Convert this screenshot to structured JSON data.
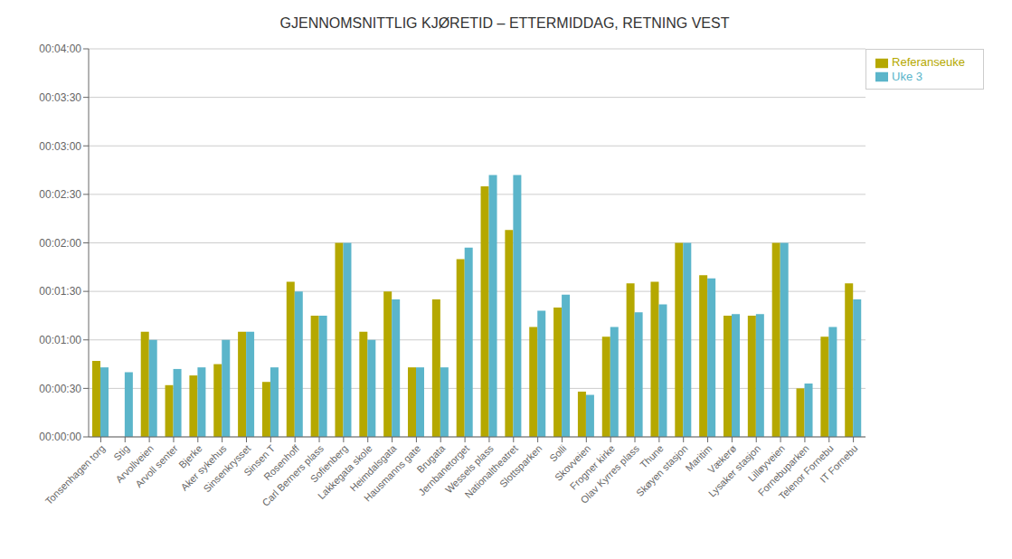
{
  "chart_data": {
    "type": "bar",
    "title": "GJENNOMSNITTLIG KJØRETID – ETTERMIDDAG, RETNING VEST",
    "categories": [
      "Tonsenhagen torg",
      "Stig",
      "Arvollveien",
      "Arvoll senter",
      "Bjerke",
      "Aker sykehus",
      "Sinsenkrysset",
      "Sinsen T",
      "Rosenhoff",
      "Carl Berners plass",
      "Sofienberg",
      "Lakkegata skole",
      "Heimdalsgata",
      "Hausmanns gate",
      "Brugata",
      "Jernbanetorget",
      "Wessels plass",
      "Nationaltheatret",
      "Slottsparken",
      "Solli",
      "Skovveien",
      "Frogner kirke",
      "Olav Kyrres plass",
      "Thune",
      "Skøyen stasjon",
      "Maritim",
      "Vækerø",
      "Lysaker stasjon",
      "Lilløyveien",
      "Fornebuparken",
      "Telenor Fornebu",
      "IT Fornebu"
    ],
    "series": [
      {
        "name": "Referanseuke",
        "color": "#B5A800",
        "values": [
          47,
          0,
          65,
          32,
          38,
          45,
          65,
          34,
          96,
          75,
          120,
          65,
          90,
          43,
          85,
          110,
          155,
          128,
          68,
          80,
          28,
          62,
          95,
          96,
          120,
          100,
          75,
          75,
          120,
          30,
          62,
          95
        ]
      },
      {
        "name": "Uke 3",
        "color": "#5BB5CA",
        "values": [
          43,
          40,
          60,
          42,
          43,
          60,
          65,
          43,
          90,
          75,
          120,
          60,
          85,
          43,
          43,
          117,
          162,
          162,
          78,
          88,
          26,
          68,
          77,
          82,
          120,
          98,
          76,
          76,
          120,
          33,
          68,
          85
        ]
      }
    ],
    "ylim": [
      0,
      240
    ],
    "yticks": [
      {
        "value": 0,
        "label": "00:00:00"
      },
      {
        "value": 30,
        "label": "00:00:30"
      },
      {
        "value": 60,
        "label": "00:01:00"
      },
      {
        "value": 90,
        "label": "00:01:30"
      },
      {
        "value": 120,
        "label": "00:02:00"
      },
      {
        "value": 150,
        "label": "00:02:30"
      },
      {
        "value": 180,
        "label": "00:03:00"
      },
      {
        "value": 210,
        "label": "00:03:30"
      },
      {
        "value": 240,
        "label": "00:04:00"
      }
    ],
    "grid": true,
    "legend": "upper right"
  }
}
